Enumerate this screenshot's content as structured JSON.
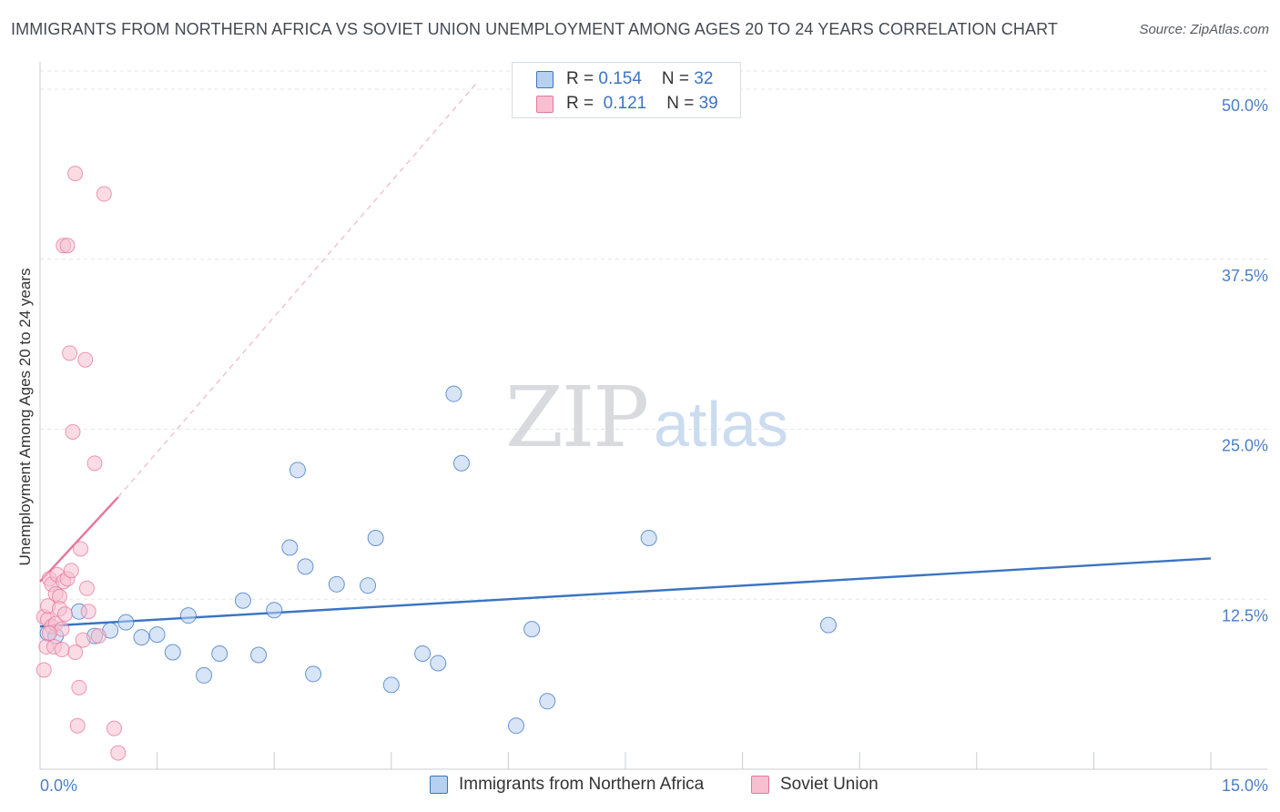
{
  "title": "IMMIGRANTS FROM NORTHERN AFRICA VS SOVIET UNION UNEMPLOYMENT AMONG AGES 20 TO 24 YEARS CORRELATION CHART",
  "source": "Source: ZipAtlas.com",
  "watermark": {
    "zip": "ZIP",
    "atlas": "atlas"
  },
  "colors": {
    "blue": "#3a74c4",
    "blue_fill": "#b8d0f0",
    "pink": "#e8769c",
    "pink_fill": "#f7bfd0",
    "grid": "#e2e5e9",
    "axis_label": "#4a7fc8"
  },
  "legend": {
    "rows": [
      {
        "r_label": "R = ",
        "r_value": "0.154",
        "n_label": "N = ",
        "n_value": "32",
        "color_key": "blue"
      },
      {
        "r_label": "R = ",
        "r_value": " 0.121",
        "n_label": "N = ",
        "n_value": "39",
        "color_key": "pink"
      }
    ]
  },
  "chart_data": {
    "type": "scatter",
    "title": "IMMIGRANTS FROM NORTHERN AFRICA VS SOVIET UNION UNEMPLOYMENT AMONG AGES 20 TO 24 YEARS CORRELATION CHART",
    "xlabel": "",
    "ylabel": "Unemployment Among Ages 20 to 24 years",
    "xlim": [
      0,
      15
    ],
    "ylim": [
      0,
      50
    ],
    "x_tick_labels": [
      "0.0%",
      "15.0%"
    ],
    "y_tick_labels": [
      "12.5%",
      "25.0%",
      "37.5%",
      "50.0%"
    ],
    "y_ticks": [
      12.5,
      25,
      37.5,
      50
    ],
    "grid": true,
    "legend_position": "top-center",
    "series": [
      {
        "name": "Immigrants from Northern Africa",
        "color_key": "blue",
        "points": [
          [
            0.1,
            10.0
          ],
          [
            0.2,
            9.8
          ],
          [
            0.5,
            11.6
          ],
          [
            0.7,
            9.8
          ],
          [
            0.9,
            10.2
          ],
          [
            1.1,
            10.8
          ],
          [
            1.3,
            9.7
          ],
          [
            1.5,
            9.9
          ],
          [
            1.7,
            8.6
          ],
          [
            1.9,
            11.3
          ],
          [
            2.1,
            6.9
          ],
          [
            2.3,
            8.5
          ],
          [
            2.6,
            12.4
          ],
          [
            2.8,
            8.4
          ],
          [
            3.0,
            11.7
          ],
          [
            3.2,
            16.3
          ],
          [
            3.3,
            22.0
          ],
          [
            3.4,
            14.9
          ],
          [
            3.5,
            7.0
          ],
          [
            3.8,
            13.6
          ],
          [
            4.2,
            13.5
          ],
          [
            4.3,
            17.0
          ],
          [
            4.5,
            6.2
          ],
          [
            4.9,
            8.5
          ],
          [
            5.1,
            7.8
          ],
          [
            5.3,
            27.6
          ],
          [
            5.4,
            22.5
          ],
          [
            6.1,
            3.2
          ],
          [
            6.3,
            10.3
          ],
          [
            6.5,
            5.0
          ],
          [
            7.8,
            17.0
          ],
          [
            10.1,
            10.6
          ]
        ],
        "trend": {
          "x": [
            0.0,
            15.0
          ],
          "y": [
            10.5,
            15.5
          ]
        }
      },
      {
        "name": "Soviet Union",
        "color_key": "pink",
        "points": [
          [
            0.05,
            7.3
          ],
          [
            0.05,
            11.2
          ],
          [
            0.08,
            9.0
          ],
          [
            0.1,
            11.0
          ],
          [
            0.1,
            12.0
          ],
          [
            0.12,
            14.0
          ],
          [
            0.15,
            10.5
          ],
          [
            0.15,
            13.6
          ],
          [
            0.18,
            9.0
          ],
          [
            0.2,
            12.9
          ],
          [
            0.2,
            10.7
          ],
          [
            0.22,
            14.3
          ],
          [
            0.25,
            12.7
          ],
          [
            0.25,
            11.8
          ],
          [
            0.28,
            10.3
          ],
          [
            0.3,
            38.5
          ],
          [
            0.3,
            13.8
          ],
          [
            0.32,
            11.4
          ],
          [
            0.35,
            14.0
          ],
          [
            0.35,
            38.5
          ],
          [
            0.38,
            30.6
          ],
          [
            0.4,
            14.6
          ],
          [
            0.42,
            24.8
          ],
          [
            0.45,
            43.8
          ],
          [
            0.45,
            8.6
          ],
          [
            0.48,
            3.2
          ],
          [
            0.5,
            6.0
          ],
          [
            0.52,
            16.2
          ],
          [
            0.55,
            9.5
          ],
          [
            0.58,
            30.1
          ],
          [
            0.6,
            13.3
          ],
          [
            0.62,
            11.6
          ],
          [
            0.7,
            22.5
          ],
          [
            0.75,
            9.8
          ],
          [
            0.82,
            42.3
          ],
          [
            0.95,
            3.0
          ],
          [
            1.0,
            1.2
          ],
          [
            0.12,
            10.0
          ],
          [
            0.28,
            8.8
          ]
        ],
        "trend": {
          "x": [
            0.0,
            1.0
          ],
          "y": [
            13.8,
            20.0
          ]
        },
        "trend_extension": {
          "x": [
            1.0,
            5.6
          ],
          "y": [
            20.0,
            50.5
          ]
        }
      }
    ]
  },
  "bottom_legend": [
    {
      "label": "Immigrants from Northern Africa",
      "color_key": "blue"
    },
    {
      "label": "Soviet Union",
      "color_key": "pink"
    }
  ]
}
